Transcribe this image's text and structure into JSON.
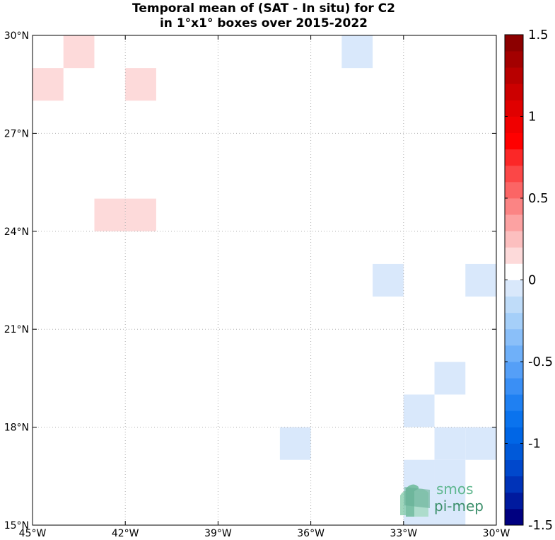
{
  "chart_data": {
    "type": "heatmap",
    "title": [
      "Temporal mean of (SAT - In situ) for C2",
      "in 1°x1° boxes over 2015-2022"
    ],
    "xlim": [
      -45,
      -30
    ],
    "ylim": [
      15,
      30
    ],
    "grid": true,
    "x_ticks": [
      {
        "value": -45,
        "label": "45°W"
      },
      {
        "value": -42,
        "label": "42°W"
      },
      {
        "value": -39,
        "label": "39°W"
      },
      {
        "value": -36,
        "label": "36°W"
      },
      {
        "value": -33,
        "label": "33°W"
      },
      {
        "value": -30,
        "label": "30°W"
      }
    ],
    "y_ticks": [
      {
        "value": 15,
        "label": "15°N"
      },
      {
        "value": 18,
        "label": "18°N"
      },
      {
        "value": 21,
        "label": "21°N"
      },
      {
        "value": 24,
        "label": "24°N"
      },
      {
        "value": 27,
        "label": "27°N"
      },
      {
        "value": 30,
        "label": "30°N"
      }
    ],
    "cells": [
      {
        "lon": -44,
        "lat": 29,
        "value": 0.15
      },
      {
        "lon": -45,
        "lat": 28,
        "value": 0.15
      },
      {
        "lon": -42,
        "lat": 28,
        "value": 0.15
      },
      {
        "lon": -43,
        "lat": 24,
        "value": 0.15
      },
      {
        "lon": -42,
        "lat": 24,
        "value": 0.15
      },
      {
        "lon": -35,
        "lat": 29,
        "value": -0.1
      },
      {
        "lon": -34,
        "lat": 22,
        "value": -0.1
      },
      {
        "lon": -31,
        "lat": 22,
        "value": -0.1
      },
      {
        "lon": -32,
        "lat": 19,
        "value": -0.1
      },
      {
        "lon": -33,
        "lat": 18,
        "value": -0.1
      },
      {
        "lon": -37,
        "lat": 17,
        "value": -0.1
      },
      {
        "lon": -32,
        "lat": 17,
        "value": -0.1
      },
      {
        "lon": -31,
        "lat": 17,
        "value": -0.1
      },
      {
        "lon": -33,
        "lat": 16,
        "value": -0.1
      },
      {
        "lon": -32,
        "lat": 16,
        "value": -0.1
      },
      {
        "lon": -33,
        "lat": 15,
        "value": -0.1
      },
      {
        "lon": -32,
        "lat": 15,
        "value": -0.1
      }
    ],
    "colorbar": {
      "min": -1.5,
      "max": 1.5,
      "step": 0.1,
      "ticks": [
        {
          "value": 1.5,
          "label": "1.5"
        },
        {
          "value": 1,
          "label": "1"
        },
        {
          "value": 0.5,
          "label": "0.5"
        },
        {
          "value": 0,
          "label": "0"
        },
        {
          "value": -0.5,
          "label": "-0.5"
        },
        {
          "value": -1,
          "label": "-1"
        },
        {
          "value": -1.5,
          "label": "-1.5"
        }
      ],
      "colors": [
        "#000080",
        "#001a9e",
        "#0033b8",
        "#0048cc",
        "#0059d9",
        "#0066e6",
        "#0a73ee",
        "#1f80f2",
        "#3a8ff5",
        "#559ff7",
        "#6fb0f9",
        "#8abff9",
        "#a5cff9",
        "#bfdcf9",
        "#d9e8fb",
        "#ffffff",
        "#fddada",
        "#fcbfbf",
        "#fca2a2",
        "#fb8484",
        "#fb6565",
        "#fb4747",
        "#fb2727",
        "#ff0000",
        "#f00000",
        "#e00000",
        "#cc0000",
        "#b80000",
        "#a30000",
        "#8c0000"
      ]
    }
  },
  "logo": {
    "line1": "smos",
    "line2": "pi-mep"
  }
}
